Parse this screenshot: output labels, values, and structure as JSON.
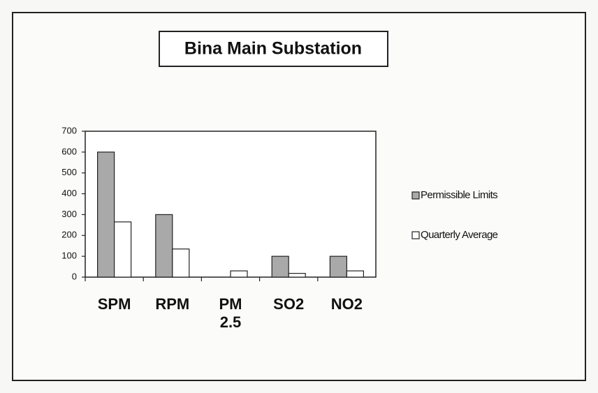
{
  "chart_data": {
    "type": "bar",
    "title": "Bina Main Substation",
    "categories": [
      "SPM",
      "RPM",
      "PM 2.5",
      "SO2",
      "NO2"
    ],
    "series": [
      {
        "name": "Permissible Limits",
        "color": "#a9a9a9",
        "values": [
          600,
          300,
          null,
          100,
          100
        ]
      },
      {
        "name": "Quarterly Average",
        "color": "#ffffff",
        "values": [
          265,
          135,
          30,
          18,
          30
        ]
      }
    ],
    "ylim": [
      0,
      700
    ],
    "yticks": [
      0,
      100,
      200,
      300,
      400,
      500,
      600,
      700
    ],
    "legend": "right"
  }
}
